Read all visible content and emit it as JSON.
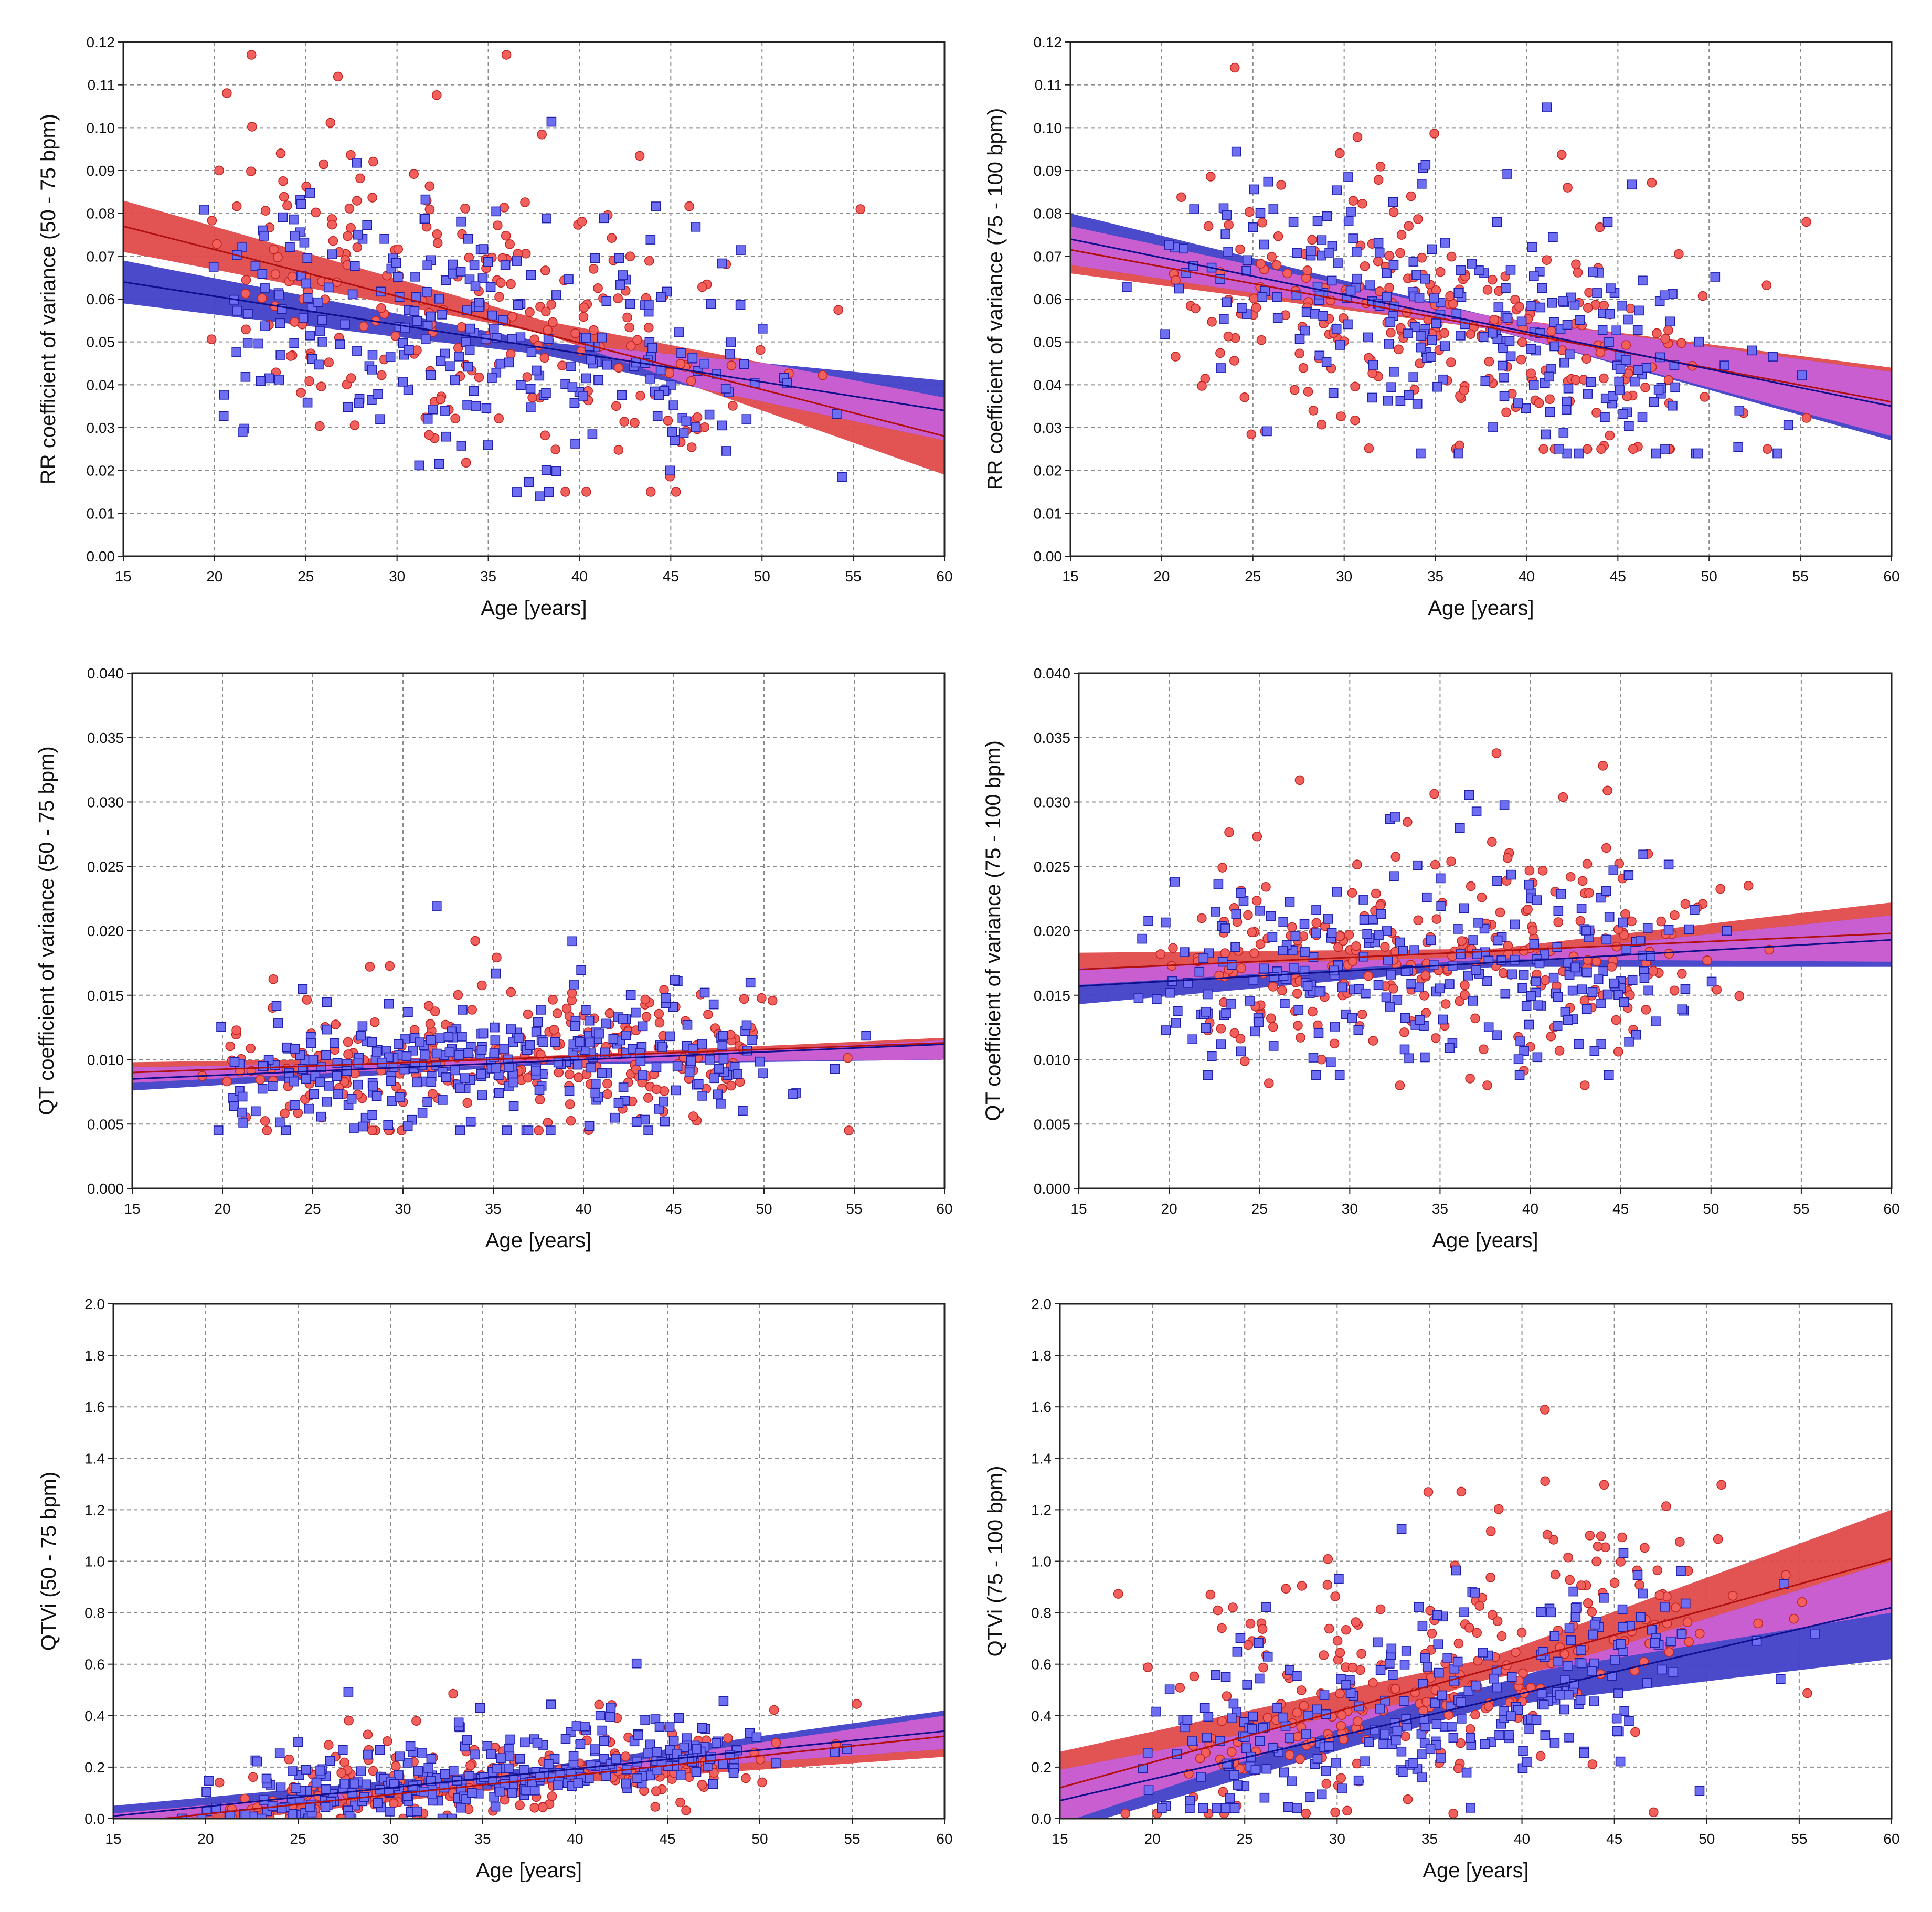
{
  "colors": {
    "female_fill": "#f2605e",
    "female_line": "#b01010",
    "female_band": "#e04a4a",
    "male_fill": "#6e6ef2",
    "male_line": "#10108c",
    "male_band": "#4040c8",
    "overlap_band": "#d060d0"
  },
  "chart_data": [
    {
      "id": "rr_low",
      "type": "scatter",
      "xlabel": "Age [years]",
      "ylabel": "RR coefficient of variance (50 - 75 bpm)",
      "xlim": [
        15,
        60
      ],
      "ylim": [
        0,
        0.12
      ],
      "xticks": [
        15,
        20,
        25,
        30,
        35,
        40,
        45,
        50,
        55,
        60
      ],
      "yticks": [
        0,
        0.01,
        0.02,
        0.03,
        0.04,
        0.05,
        0.06,
        0.07,
        0.08,
        0.09,
        0.1,
        0.11,
        0.12
      ],
      "ydec": 2,
      "series": [
        {
          "name": "female",
          "marker": "circle",
          "fit": [
            [
              15,
              0.077
            ],
            [
              60,
              0.028
            ]
          ],
          "band": [
            [
              15,
              0.071,
              0.083
            ],
            [
              38,
              0.052,
              0.055
            ],
            [
              60,
              0.019,
              0.037
            ]
          ]
        },
        {
          "name": "male",
          "marker": "square",
          "fit": [
            [
              15,
              0.064
            ],
            [
              60,
              0.034
            ]
          ],
          "band": [
            [
              15,
              0.059,
              0.069
            ],
            [
              38,
              0.047,
              0.05
            ],
            [
              60,
              0.027,
              0.041
            ]
          ]
        }
      ],
      "sim": {
        "female": {
          "n": 230,
          "sd": 0.016,
          "seed": 11,
          "lo": 0.015,
          "hi": 0.117
        },
        "male": {
          "n": 270,
          "sd": 0.014,
          "seed": 23,
          "lo": 0.014,
          "hi": 0.113
        }
      }
    },
    {
      "id": "rr_high",
      "type": "scatter",
      "xlabel": "Age [years]",
      "ylabel": "RR coefficient of variance (75 - 100 bpm)",
      "xlim": [
        15,
        60
      ],
      "ylim": [
        0,
        0.12
      ],
      "xticks": [
        15,
        20,
        25,
        30,
        35,
        40,
        45,
        50,
        55,
        60
      ],
      "yticks": [
        0,
        0.01,
        0.02,
        0.03,
        0.04,
        0.05,
        0.06,
        0.07,
        0.08,
        0.09,
        0.1,
        0.11,
        0.12
      ],
      "ydec": 2,
      "series": [
        {
          "name": "female",
          "marker": "circle",
          "fit": [
            [
              15,
              0.0715
            ],
            [
              60,
              0.036
            ]
          ],
          "band": [
            [
              15,
              0.066,
              0.077
            ],
            [
              38,
              0.053,
              0.056
            ],
            [
              60,
              0.028,
              0.044
            ]
          ]
        },
        {
          "name": "male",
          "marker": "square",
          "fit": [
            [
              15,
              0.074
            ],
            [
              60,
              0.035
            ]
          ],
          "band": [
            [
              15,
              0.068,
              0.08
            ],
            [
              38,
              0.053,
              0.056
            ],
            [
              60,
              0.027,
              0.043
            ]
          ]
        }
      ],
      "sim": {
        "female": {
          "n": 250,
          "sd": 0.014,
          "seed": 37,
          "lo": 0.025,
          "hi": 0.114
        },
        "male": {
          "n": 260,
          "sd": 0.012,
          "seed": 41,
          "lo": 0.024,
          "hi": 0.11
        }
      }
    },
    {
      "id": "qt_low",
      "type": "scatter",
      "xlabel": "Age [years]",
      "ylabel": "QT coefficient of variance (50 - 75 bpm)",
      "xlim": [
        15,
        60
      ],
      "ylim": [
        0,
        0.04
      ],
      "xticks": [
        15,
        20,
        25,
        30,
        35,
        40,
        45,
        50,
        55,
        60
      ],
      "yticks": [
        0,
        0.005,
        0.01,
        0.015,
        0.02,
        0.025,
        0.03,
        0.035,
        0.04
      ],
      "ydec": 3,
      "series": [
        {
          "name": "female",
          "marker": "circle",
          "fit": [
            [
              15,
              0.009
            ],
            [
              60,
              0.0113
            ]
          ],
          "band": [
            [
              15,
              0.0082,
              0.0098
            ],
            [
              38,
              0.0098,
              0.0103
            ],
            [
              60,
              0.01,
              0.0117
            ]
          ]
        },
        {
          "name": "male",
          "marker": "square",
          "fit": [
            [
              15,
              0.0085
            ],
            [
              60,
              0.0112
            ]
          ],
          "band": [
            [
              15,
              0.0076,
              0.0094
            ],
            [
              38,
              0.0096,
              0.01
            ],
            [
              60,
              0.01,
              0.0115
            ]
          ]
        }
      ],
      "sim": {
        "female": {
          "n": 260,
          "sd": 0.0025,
          "seed": 53,
          "lo": 0.0045,
          "hi": 0.023
        },
        "male": {
          "n": 300,
          "sd": 0.0022,
          "seed": 59,
          "lo": 0.0045,
          "hi": 0.0238
        }
      }
    },
    {
      "id": "qt_high",
      "type": "scatter",
      "xlabel": "Age [years]",
      "ylabel": "QT coefficient of variance (75 - 100 bpm)",
      "xlim": [
        15,
        60
      ],
      "ylim": [
        0,
        0.04
      ],
      "xticks": [
        15,
        20,
        25,
        30,
        35,
        40,
        45,
        50,
        55,
        60
      ],
      "yticks": [
        0,
        0.005,
        0.01,
        0.015,
        0.02,
        0.025,
        0.03,
        0.035,
        0.04
      ],
      "ydec": 3,
      "series": [
        {
          "name": "female",
          "marker": "circle",
          "fit": [
            [
              15,
              0.017
            ],
            [
              60,
              0.0198
            ]
          ],
          "band": [
            [
              15,
              0.0158,
              0.0183
            ],
            [
              38,
              0.0178,
              0.0186
            ],
            [
              60,
              0.0176,
              0.0222
            ]
          ]
        },
        {
          "name": "male",
          "marker": "square",
          "fit": [
            [
              15,
              0.0157
            ],
            [
              60,
              0.0193
            ]
          ],
          "band": [
            [
              15,
              0.0143,
              0.0171
            ],
            [
              38,
              0.0172,
              0.018
            ],
            [
              60,
              0.0172,
              0.0212
            ]
          ]
        }
      ],
      "sim": {
        "female": {
          "n": 260,
          "sd": 0.0042,
          "seed": 67,
          "lo": 0.008,
          "hi": 0.039
        },
        "male": {
          "n": 270,
          "sd": 0.004,
          "seed": 71,
          "lo": 0.0088,
          "hi": 0.035
        }
      }
    },
    {
      "id": "qtvi_low",
      "type": "scatter",
      "xlabel": "Age [years]",
      "ylabel": "QTVi (50 - 75 bpm)",
      "xlim": [
        15,
        60
      ],
      "ylim": [
        0,
        2.0
      ],
      "xticks": [
        15,
        20,
        25,
        30,
        35,
        40,
        45,
        50,
        55,
        60
      ],
      "yticks": [
        0,
        0.2,
        0.4,
        0.6,
        0.8,
        1.0,
        1.2,
        1.4,
        1.6,
        1.8,
        2.0
      ],
      "ydec": 1,
      "series": [
        {
          "name": "female",
          "marker": "circle",
          "fit": [
            [
              15,
              -0.02
            ],
            [
              60,
              0.32
            ]
          ],
          "band": [
            [
              15,
              -0.06,
              0.02
            ],
            [
              38,
              0.13,
              0.17
            ],
            [
              60,
              0.24,
              0.4
            ]
          ]
        },
        {
          "name": "male",
          "marker": "square",
          "fit": [
            [
              15,
              0.01
            ],
            [
              60,
              0.34
            ]
          ],
          "band": [
            [
              15,
              -0.03,
              0.05
            ],
            [
              38,
              0.16,
              0.2
            ],
            [
              60,
              0.27,
              0.42
            ]
          ]
        }
      ],
      "sim": {
        "female": {
          "n": 240,
          "sd": 0.09,
          "seed": 79,
          "lo": 0.0,
          "hi": 0.78
        },
        "male": {
          "n": 300,
          "sd": 0.09,
          "seed": 83,
          "lo": 0.0,
          "hi": 1.3
        }
      }
    },
    {
      "id": "qtvi_high",
      "type": "scatter",
      "xlabel": "Age [years]",
      "ylabel": "QTVi (75 - 100 bpm)",
      "xlim": [
        15,
        60
      ],
      "ylim": [
        0,
        2.0
      ],
      "xticks": [
        15,
        20,
        25,
        30,
        35,
        40,
        45,
        50,
        55,
        60
      ],
      "yticks": [
        0,
        0.2,
        0.4,
        0.6,
        0.8,
        1.0,
        1.2,
        1.4,
        1.6,
        1.8,
        2.0
      ],
      "ydec": 1,
      "series": [
        {
          "name": "female",
          "marker": "circle",
          "fit": [
            [
              15,
              0.12
            ],
            [
              60,
              1.01
            ]
          ],
          "band": [
            [
              15,
              -0.02,
              0.26
            ],
            [
              38,
              0.54,
              0.62
            ],
            [
              60,
              0.8,
              1.2
            ]
          ]
        },
        {
          "name": "male",
          "marker": "square",
          "fit": [
            [
              15,
              0.07
            ],
            [
              60,
              0.82
            ]
          ],
          "band": [
            [
              15,
              -0.05,
              0.19
            ],
            [
              38,
              0.43,
              0.51
            ],
            [
              60,
              0.62,
              1.0
            ]
          ]
        }
      ],
      "sim": {
        "female": {
          "n": 260,
          "sd": 0.28,
          "seed": 97,
          "lo": 0.02,
          "hi": 1.97
        },
        "male": {
          "n": 280,
          "sd": 0.22,
          "seed": 101,
          "lo": 0.04,
          "hi": 1.89
        }
      }
    }
  ]
}
